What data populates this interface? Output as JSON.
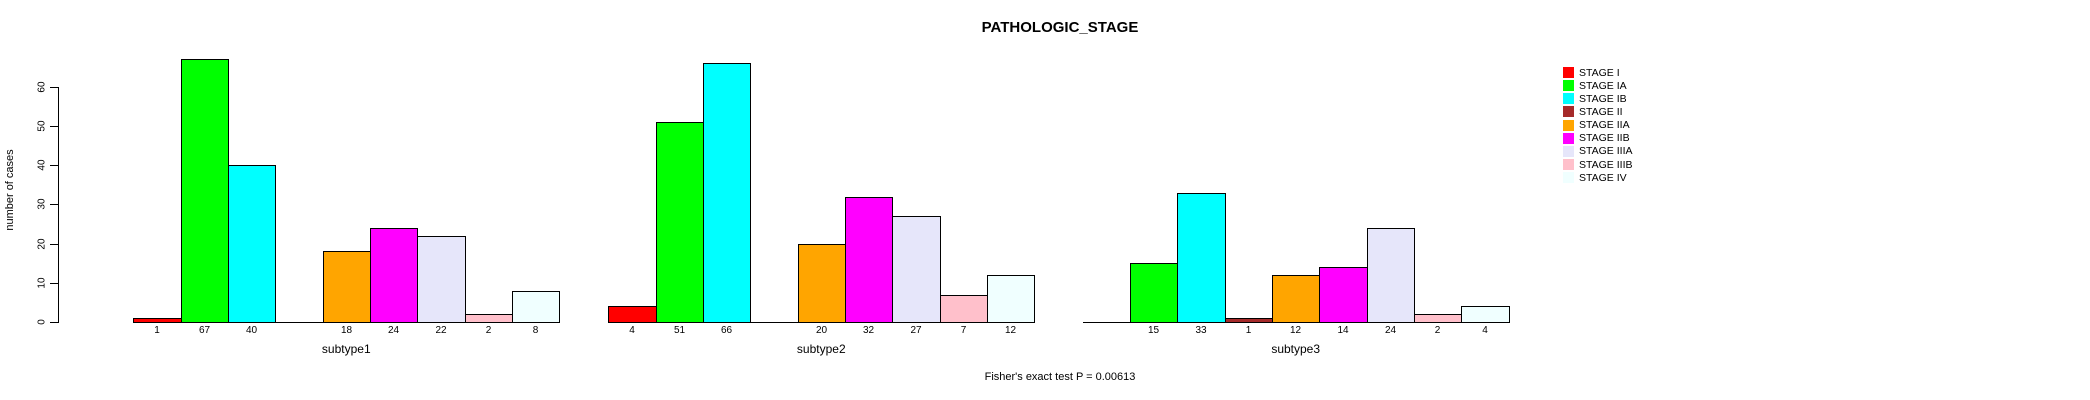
{
  "chart_data": {
    "type": "bar",
    "title": "PATHOLOGIC_STAGE",
    "ylabel": "number of cases",
    "xlabel": "",
    "footer": "Fisher's exact test P = 0.00613",
    "categories": [
      "subtype1",
      "subtype2",
      "subtype3"
    ],
    "yticks": [
      0,
      10,
      20,
      30,
      40,
      50,
      60
    ],
    "ylim": [
      0,
      67
    ],
    "grid": false,
    "legend_position": "right",
    "bar_border_color": "#000000",
    "text_color": "#000000",
    "background_color": "#FFFFFF",
    "series": [
      {
        "name": "STAGE I",
        "color": "#FF0000",
        "values": [
          1,
          4,
          0
        ]
      },
      {
        "name": "STAGE IA",
        "color": "#00FF00",
        "values": [
          67,
          51,
          15
        ]
      },
      {
        "name": "STAGE IB",
        "color": "#00FFFF",
        "values": [
          40,
          66,
          33
        ]
      },
      {
        "name": "STAGE II",
        "color": "#A52A2A",
        "values": [
          0,
          0,
          1
        ]
      },
      {
        "name": "STAGE IIA",
        "color": "#FFA500",
        "values": [
          18,
          20,
          12
        ]
      },
      {
        "name": "STAGE IIB",
        "color": "#FF00FF",
        "values": [
          24,
          32,
          14
        ]
      },
      {
        "name": "STAGE IIIA",
        "color": "#E6E6FA",
        "values": [
          22,
          27,
          24
        ]
      },
      {
        "name": "STAGE IIIB",
        "color": "#FFC0CB",
        "values": [
          2,
          7,
          2
        ]
      },
      {
        "name": "STAGE IV",
        "color": "#F0FFFF",
        "values": [
          8,
          12,
          4
        ]
      }
    ]
  }
}
